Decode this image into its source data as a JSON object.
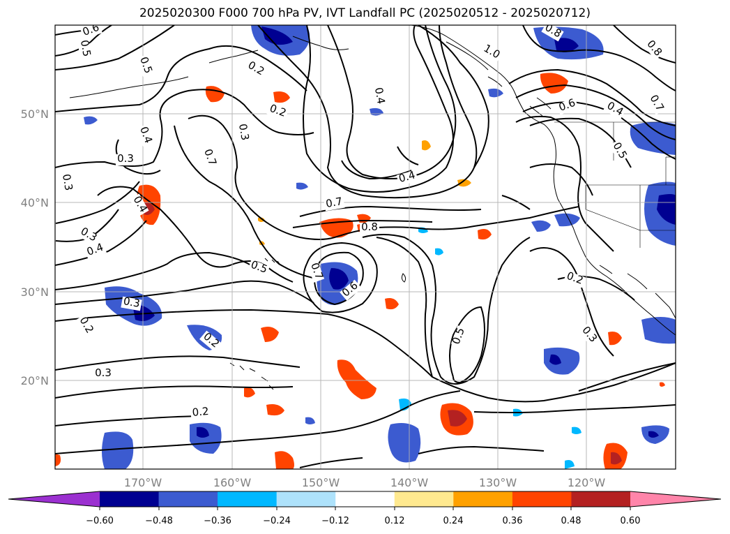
{
  "title": "2025020300 F000 700 hPa PV, IVT Landfall PC (2025020512 - 2025020712)",
  "latitude_labels": [
    "50°N",
    "40°N",
    "30°N",
    "20°N"
  ],
  "longitude_labels": [
    "170°W",
    "160°W",
    "150°W",
    "140°W",
    "130°W",
    "120°W"
  ],
  "contour_labels": [
    "0.6",
    "0.5",
    "0.5",
    "0.2",
    "0.2",
    "0.2",
    "0.3",
    "0.4",
    "0.3",
    "0.7",
    "0.3",
    "0.4",
    "0.4",
    "0.7",
    "0.8",
    "0.4",
    "0.3",
    "0.4",
    "0.5",
    "0.7",
    "0.6",
    "0.3",
    "0.2",
    "0.3",
    "0.2",
    "0.5",
    "0.2",
    "0.3",
    "1.0",
    "0.8",
    "0.6",
    "0.4",
    "0.7",
    "0.8",
    "0.5"
  ],
  "colorbar": {
    "ticks": [
      "−0.60",
      "−0.48",
      "−0.36",
      "−0.24",
      "−0.12",
      "0.12",
      "0.24",
      "0.36",
      "0.48",
      "0.60"
    ],
    "colors": {
      "under": "#9b30d0",
      "bins": [
        "#000091",
        "#3c5bd0",
        "#00b8ff",
        "#aee2fb",
        "#ffffff",
        "#ffe98f",
        "#ffa100",
        "#ff4400",
        "#b42121"
      ],
      "over": "#ff85aa"
    }
  },
  "map_extent": {
    "lon_min": -180,
    "lon_max": -110,
    "lat_min": 10,
    "lat_max": 60
  }
}
